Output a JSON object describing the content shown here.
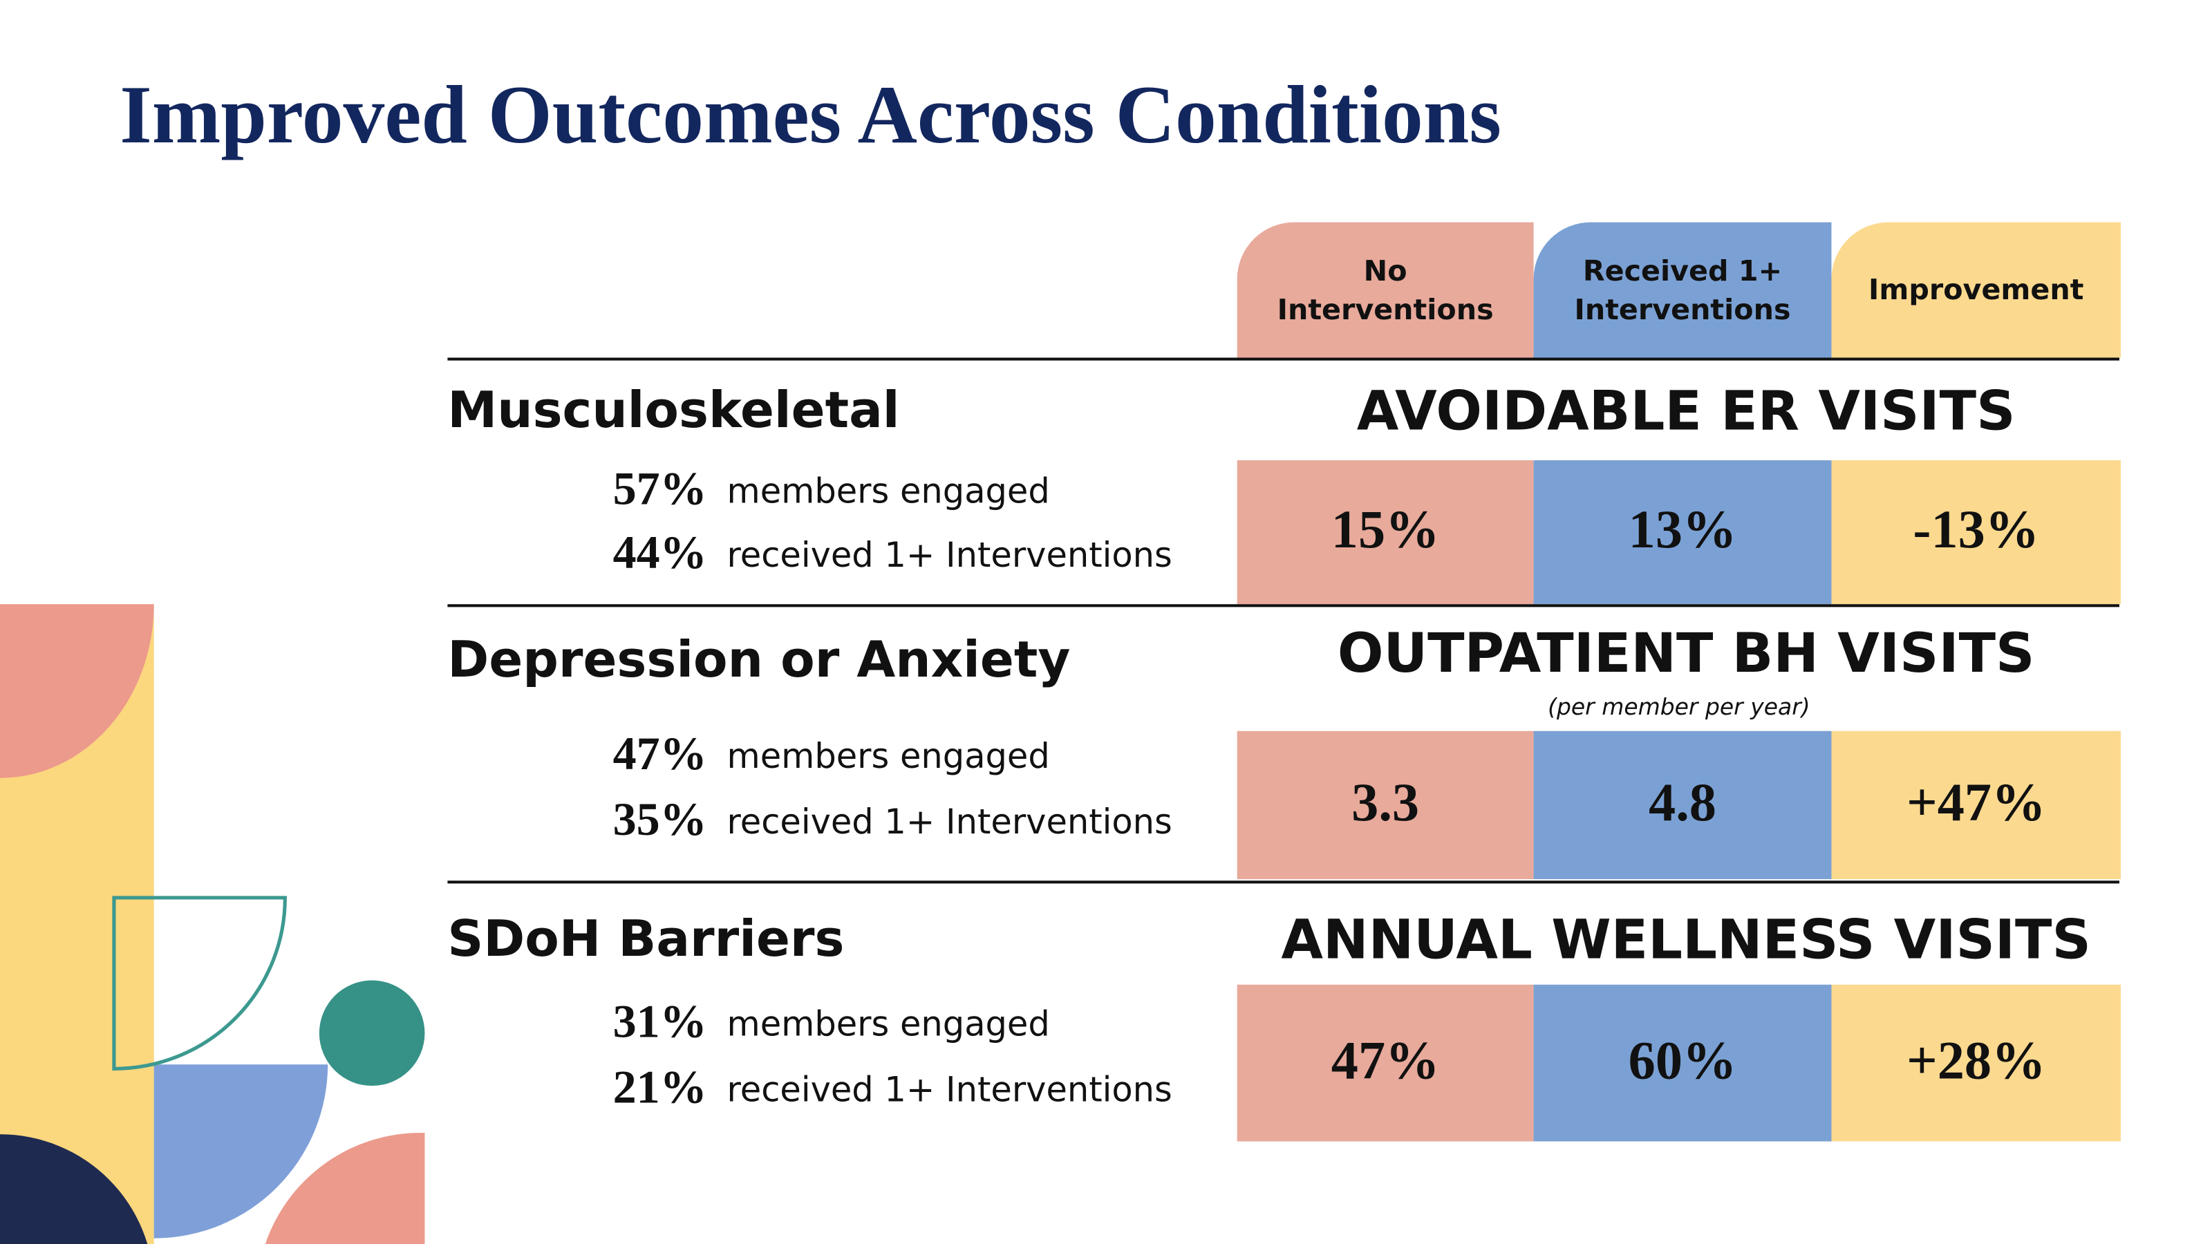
{
  "title": "Improved Outcomes Across Conditions",
  "columns": [
    "No Interventions",
    "Received 1+ Interventions",
    "Improvement"
  ],
  "rows": [
    {
      "condition": "Musculoskeletal",
      "stats": [
        {
          "value": "57%",
          "label": "members engaged"
        },
        {
          "value": "44%",
          "label": "received 1+ Interventions"
        }
      ],
      "metric": "AVOIDABLE ER VISITS",
      "values": [
        "15%",
        "13%",
        "-13%"
      ]
    },
    {
      "condition": "Depression or Anxiety",
      "stats": [
        {
          "value": "47%",
          "label": "members engaged"
        },
        {
          "value": "35%",
          "label": "received 1+ Interventions"
        }
      ],
      "metric": "OUTPATIENT BH VISITS",
      "note": "(per member per year)",
      "values": [
        "3.3",
        "4.8",
        "+47%"
      ]
    },
    {
      "condition": "SDoH Barriers",
      "stats": [
        {
          "value": "31%",
          "label": "members engaged"
        },
        {
          "value": "21%",
          "label": "received 1+ Interventions"
        }
      ],
      "metric": "ANNUAL WELLNESS VISITS",
      "values": [
        "47%",
        "60%",
        "+28%"
      ]
    }
  ]
}
